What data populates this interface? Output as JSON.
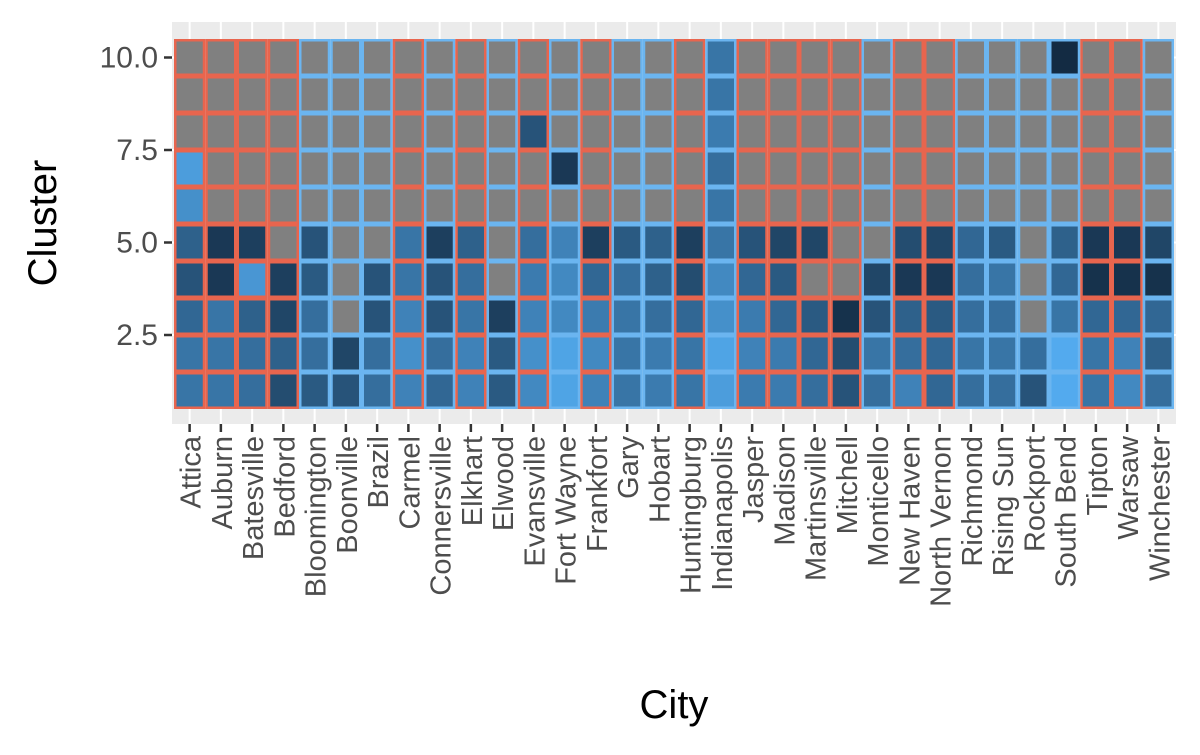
{
  "chart_data": {
    "type": "heatmap",
    "xlabel": "City",
    "ylabel": "Cluster",
    "y_ticks": [
      "2.5",
      "5.0",
      "7.5",
      "10.0"
    ],
    "y_tick_values": [
      2.5,
      5.0,
      7.5,
      10.0
    ],
    "ylim": [
      0.5,
      10.5
    ],
    "clusters": [
      1,
      2,
      3,
      4,
      5,
      6,
      7,
      8,
      9,
      10
    ],
    "categories": [
      "Attica",
      "Auburn",
      "Batesville",
      "Bedford",
      "Bloomington",
      "Boonville",
      "Brazil",
      "Carmel",
      "Connersville",
      "Elkhart",
      "Elwood",
      "Evansville",
      "Fort Wayne",
      "Frankfort",
      "Gary",
      "Hobart",
      "Huntingburg",
      "Indianapolis",
      "Jasper",
      "Madison",
      "Martinsville",
      "Mitchell",
      "Monticello",
      "New Haven",
      "North Vernon",
      "Richmond",
      "Rising Sun",
      "Rockport",
      "South Bend",
      "Tipton",
      "Warsaw",
      "Winchester"
    ],
    "border_group": [
      "red",
      "red",
      "red",
      "red",
      "blue",
      "blue",
      "blue",
      "red",
      "blue",
      "red",
      "blue",
      "red",
      "blue",
      "red",
      "blue",
      "blue",
      "red",
      "blue",
      "red",
      "red",
      "red",
      "red",
      "blue",
      "red",
      "red",
      "blue",
      "blue",
      "blue",
      "blue",
      "red",
      "red",
      "blue"
    ],
    "values": [
      [
        0.45,
        0.45,
        0.55,
        0.7,
        0.6,
        0.25,
        0.15,
        0.0,
        0.0,
        0.0
      ],
      [
        0.45,
        0.45,
        0.45,
        0.9,
        0.9,
        0.0,
        0.0,
        0.0,
        0.0,
        0.0
      ],
      [
        0.5,
        0.5,
        0.6,
        0.2,
        0.85,
        0.0,
        0.0,
        0.0,
        0.0,
        0.0
      ],
      [
        0.75,
        0.6,
        0.8,
        0.85,
        0.0,
        0.0,
        0.0,
        0.0,
        0.0,
        0.0
      ],
      [
        0.65,
        0.5,
        0.5,
        0.65,
        0.7,
        0.0,
        0.0,
        0.0,
        0.0,
        0.0
      ],
      [
        0.7,
        0.8,
        0.0,
        0.0,
        0.0,
        0.0,
        0.0,
        0.0,
        0.0,
        0.0
      ],
      [
        0.5,
        0.5,
        0.7,
        0.7,
        0.0,
        0.0,
        0.0,
        0.0,
        0.0,
        0.0
      ],
      [
        0.35,
        0.25,
        0.35,
        0.45,
        0.45,
        0.0,
        0.0,
        0.0,
        0.0,
        0.0
      ],
      [
        0.55,
        0.5,
        0.7,
        0.7,
        0.85,
        0.0,
        0.0,
        0.0,
        0.0,
        0.0
      ],
      [
        0.35,
        0.35,
        0.45,
        0.5,
        0.6,
        0.0,
        0.0,
        0.0,
        0.0,
        0.0
      ],
      [
        0.65,
        0.65,
        0.85,
        0.0,
        0.0,
        0.0,
        0.0,
        0.0,
        0.0,
        0.0
      ],
      [
        0.3,
        0.25,
        0.35,
        0.4,
        0.5,
        0.0,
        0.0,
        0.7,
        0.0,
        0.0
      ],
      [
        0.1,
        0.1,
        0.3,
        0.3,
        0.35,
        0.0,
        0.9,
        0.0,
        0.0,
        0.0
      ],
      [
        0.35,
        0.3,
        0.4,
        0.55,
        0.85,
        0.0,
        0.0,
        0.0,
        0.0,
        0.0
      ],
      [
        0.45,
        0.45,
        0.45,
        0.5,
        0.65,
        0.0,
        0.0,
        0.0,
        0.0,
        0.0
      ],
      [
        0.4,
        0.4,
        0.5,
        0.6,
        0.6,
        0.0,
        0.0,
        0.0,
        0.0,
        0.0
      ],
      [
        0.45,
        0.45,
        0.55,
        0.75,
        0.85,
        0.0,
        0.0,
        0.0,
        0.0,
        0.0
      ],
      [
        0.15,
        0.1,
        0.25,
        0.3,
        0.45,
        0.45,
        0.5,
        0.4,
        0.45,
        0.45
      ],
      [
        0.4,
        0.35,
        0.4,
        0.55,
        0.7,
        0.0,
        0.0,
        0.0,
        0.0,
        0.0
      ],
      [
        0.4,
        0.4,
        0.55,
        0.65,
        0.8,
        0.0,
        0.0,
        0.0,
        0.0,
        0.0
      ],
      [
        0.5,
        0.55,
        0.65,
        0.0,
        0.8,
        0.0,
        0.0,
        0.0,
        0.0,
        0.0
      ],
      [
        0.7,
        0.75,
        0.95,
        0.0,
        0.0,
        0.0,
        0.0,
        0.0,
        0.0,
        0.0
      ],
      [
        0.5,
        0.45,
        0.7,
        0.8,
        0.0,
        0.0,
        0.0,
        0.0,
        0.0,
        0.0
      ],
      [
        0.35,
        0.5,
        0.6,
        0.9,
        0.75,
        0.0,
        0.0,
        0.0,
        0.0,
        0.0
      ],
      [
        0.55,
        0.55,
        0.65,
        0.9,
        0.8,
        0.0,
        0.0,
        0.0,
        0.0,
        0.0
      ],
      [
        0.5,
        0.45,
        0.5,
        0.5,
        0.55,
        0.0,
        0.0,
        0.0,
        0.0,
        0.0
      ],
      [
        0.5,
        0.45,
        0.5,
        0.45,
        0.65,
        0.0,
        0.0,
        0.0,
        0.0,
        0.0
      ],
      [
        0.7,
        0.5,
        0.0,
        0.0,
        0.0,
        0.0,
        0.0,
        0.0,
        0.0,
        0.0
      ],
      [
        0.05,
        0.05,
        0.45,
        0.55,
        0.6,
        0.0,
        0.0,
        0.0,
        0.0,
        1.0
      ],
      [
        0.45,
        0.45,
        0.55,
        0.95,
        0.9,
        0.0,
        0.0,
        0.0,
        0.0,
        0.0
      ],
      [
        0.3,
        0.35,
        0.55,
        0.95,
        0.9,
        0.0,
        0.0,
        0.0,
        0.0,
        0.0
      ],
      [
        0.5,
        0.6,
        0.55,
        0.95,
        0.8,
        0.0,
        0.0,
        0.0,
        0.0,
        0.0
      ]
    ],
    "colors": {
      "low": "#56B1F7",
      "high": "#132B43",
      "zero_fill": "#808080",
      "red_border": "#E8654E",
      "blue_border": "#6BB5F0",
      "panel_bg": "#EBEBEB",
      "grid": "#FFFFFF"
    }
  }
}
